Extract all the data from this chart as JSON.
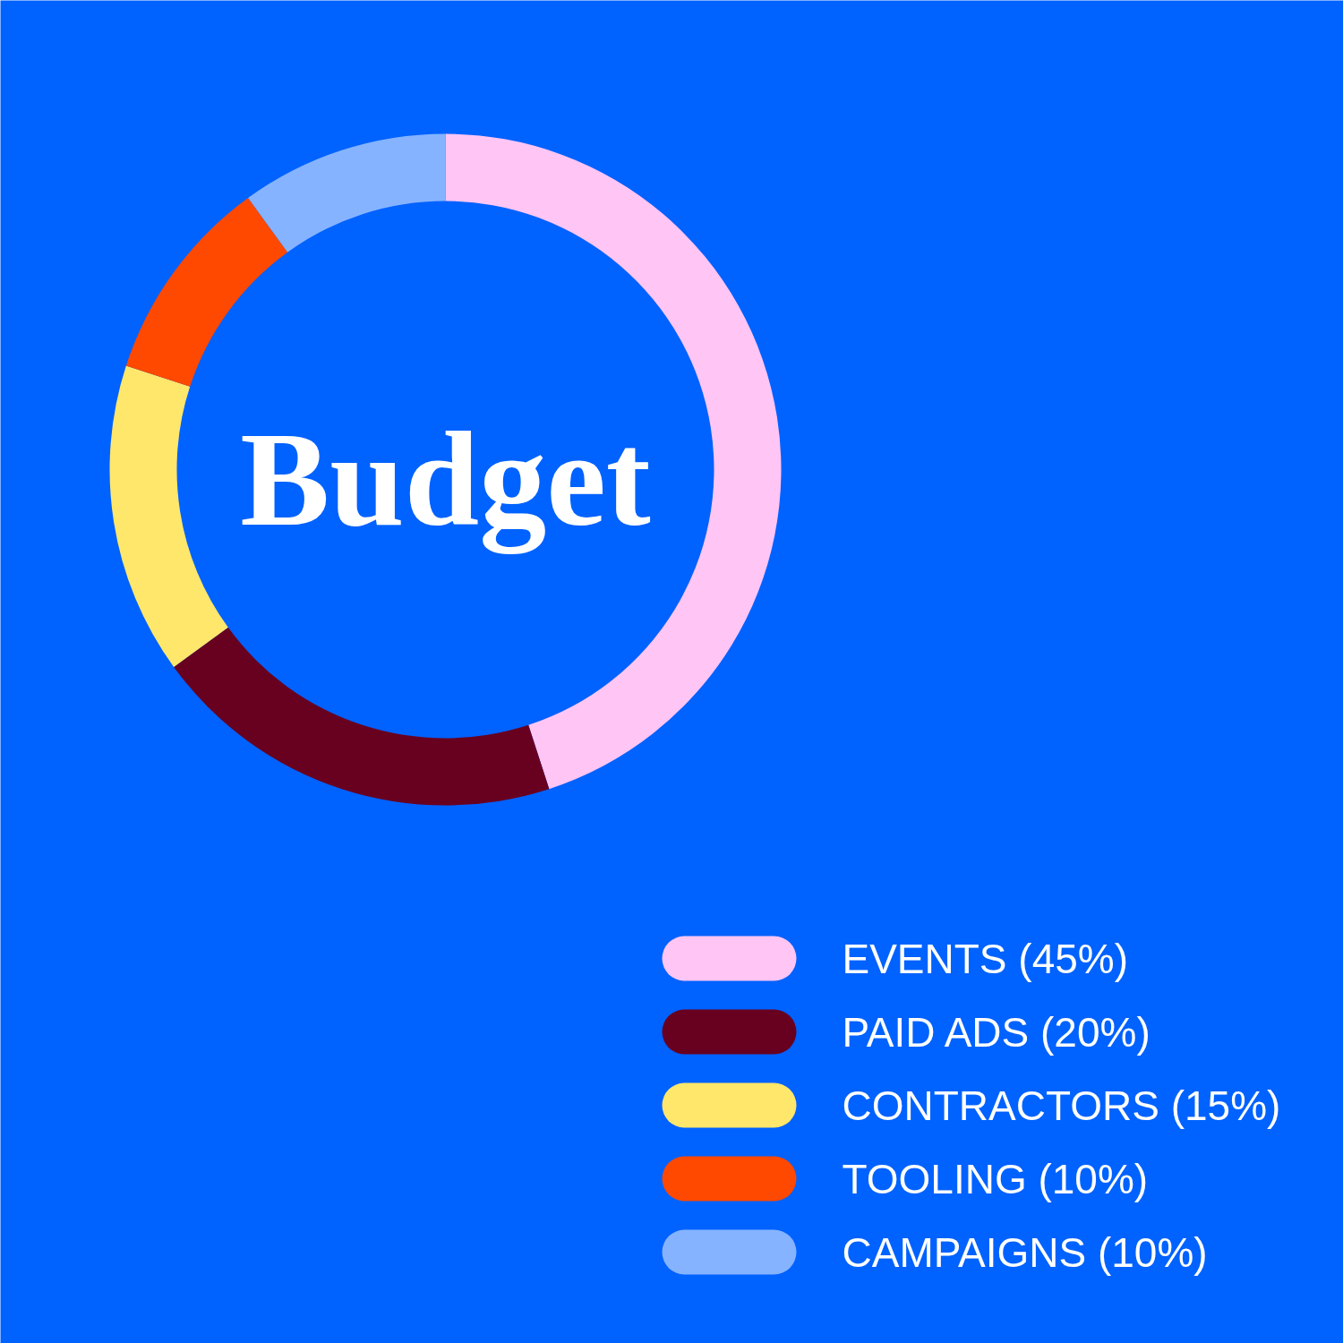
{
  "chart_data": {
    "type": "donut",
    "title": "Budget",
    "categories": [
      "EVENTS (45%)",
      "PAID ADS (20%)",
      "CONTRACTORS (15%)",
      "TOOLING (10%)",
      "CAMPAIGNS (10%)"
    ],
    "values": [
      45,
      20,
      15,
      10,
      10
    ],
    "colors": [
      "#ffc5f4",
      "#680020",
      "#ffe76b",
      "#ff4800",
      "#85b3ff"
    ],
    "legend": "bottom right"
  }
}
